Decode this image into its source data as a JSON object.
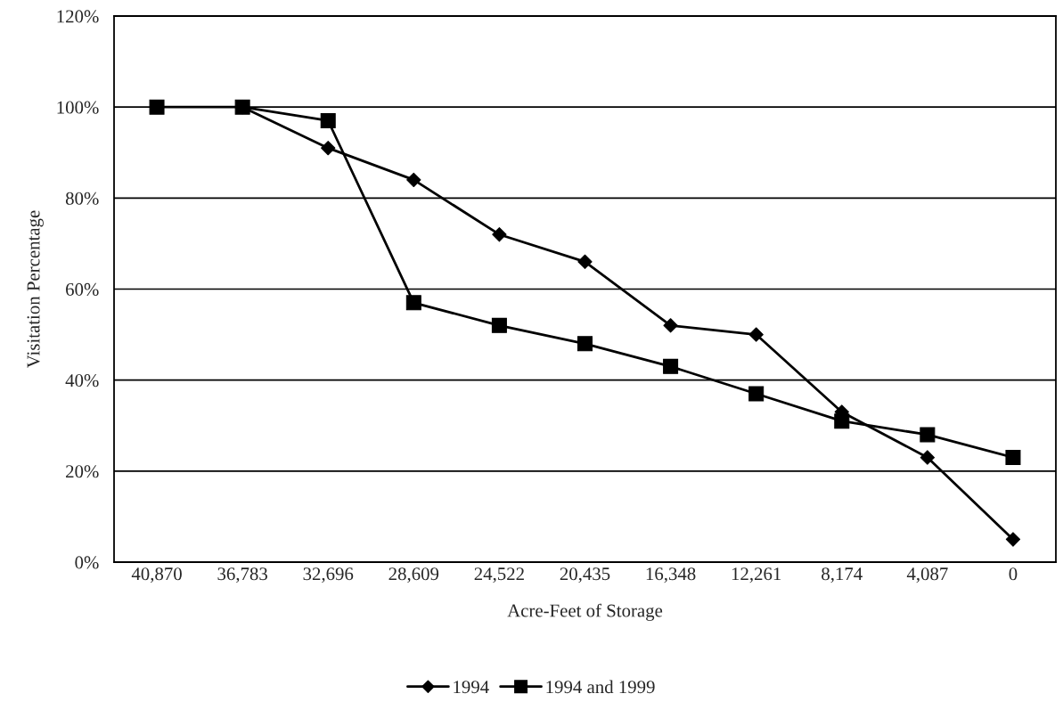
{
  "chart_data": {
    "type": "line",
    "xlabel": "Acre-Feet of Storage",
    "ylabel": "Visitation Percentage",
    "categories": [
      "40,870",
      "36,783",
      "32,696",
      "28,609",
      "24,522",
      "20,435",
      "16,348",
      "12,261",
      "8,174",
      "4,087",
      "0"
    ],
    "ylim": [
      0,
      120
    ],
    "yticks": [
      {
        "value": 0,
        "label": "0%"
      },
      {
        "value": 20,
        "label": "20%"
      },
      {
        "value": 40,
        "label": "40%"
      },
      {
        "value": 60,
        "label": "60%"
      },
      {
        "value": 80,
        "label": "80%"
      },
      {
        "value": 100,
        "label": "100%"
      },
      {
        "value": 120,
        "label": "120%"
      }
    ],
    "grid": "y",
    "legend": "bottom",
    "line_style": "solid",
    "series": [
      {
        "name": "1994",
        "color": "#000000",
        "marker": "diamond",
        "values": [
          null,
          100,
          91,
          84,
          72,
          66,
          52,
          50,
          33,
          23,
          5
        ]
      },
      {
        "name": "1994 and 1999",
        "color": "#000000",
        "marker": "square",
        "values": [
          100,
          100,
          97,
          57,
          52,
          48,
          43,
          37,
          31,
          28,
          23
        ]
      }
    ]
  }
}
